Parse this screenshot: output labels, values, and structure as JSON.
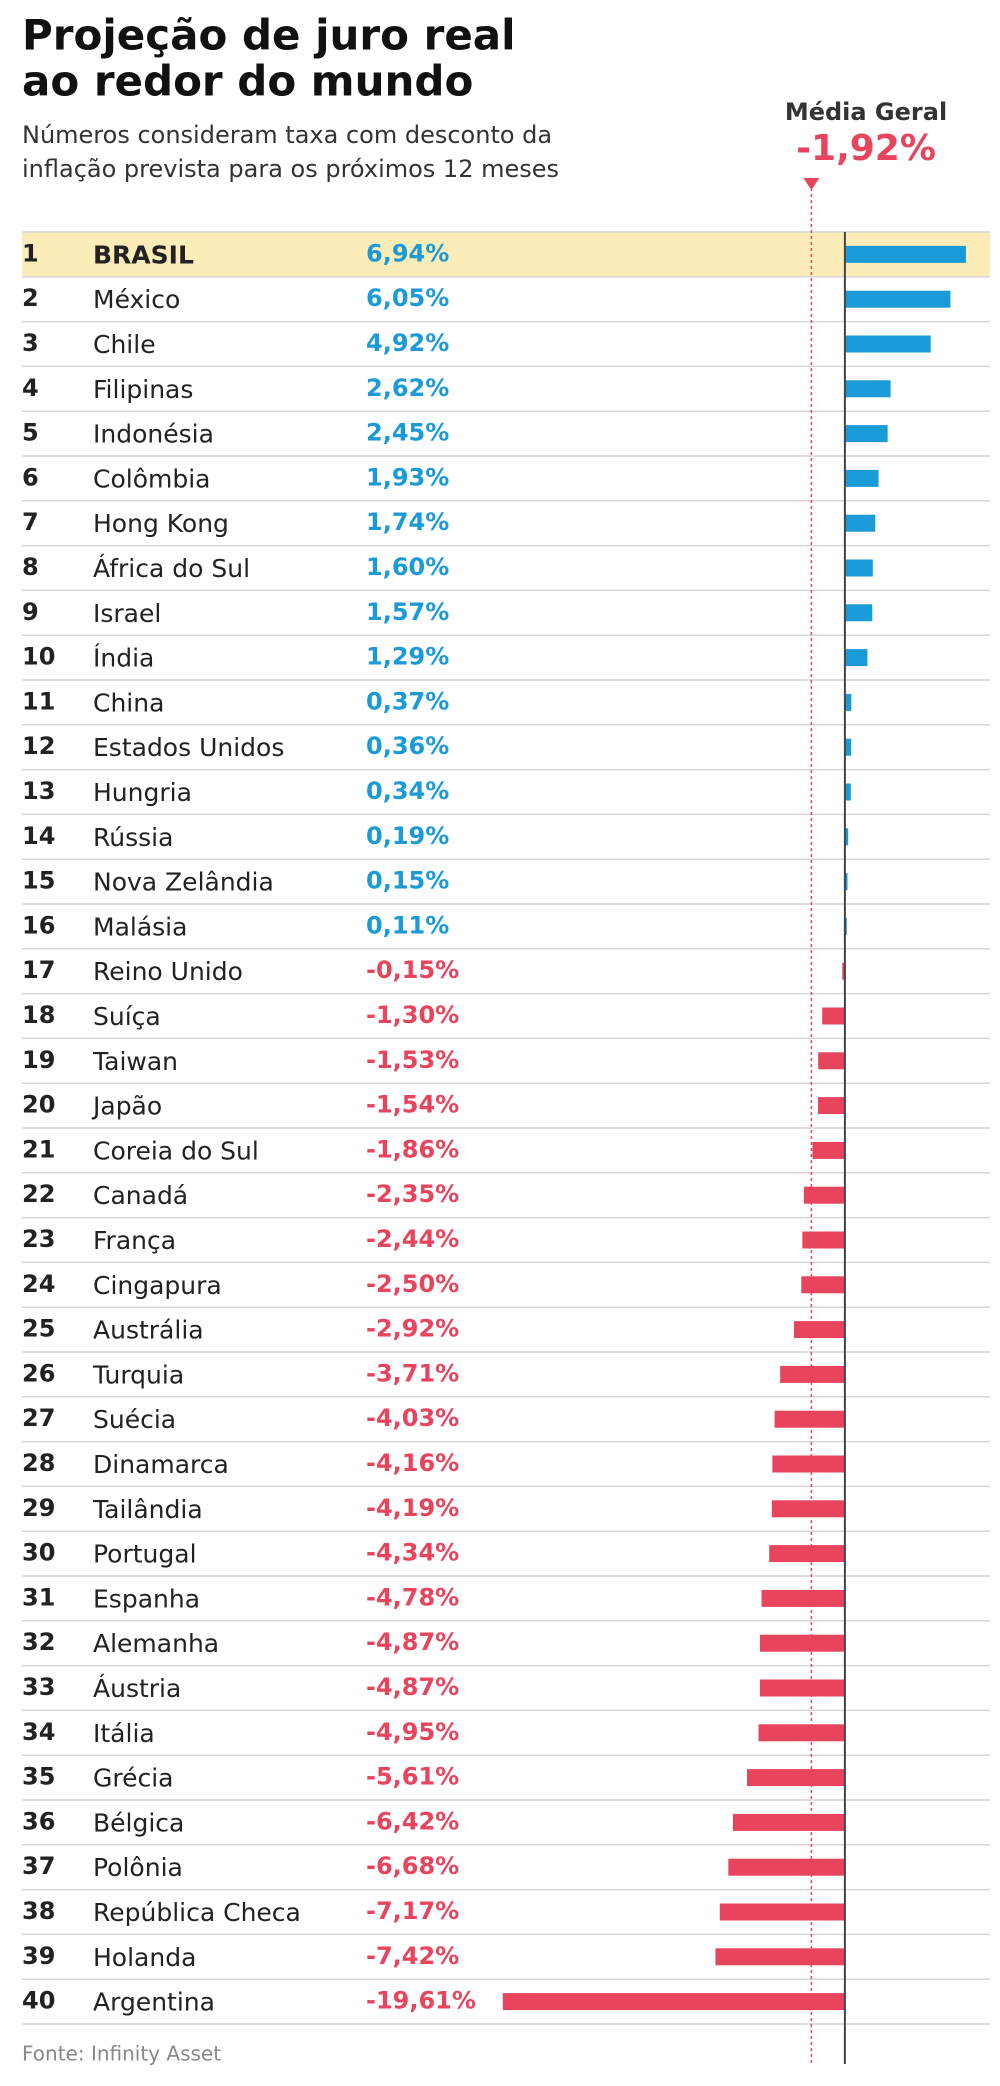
{
  "chart_data": {
    "type": "bar",
    "orientation": "horizontal",
    "title": "Projeção de juro real",
    "title_line2": "ao redor do mundo",
    "subtitle": "Números consideram taxa com desconto da",
    "subtitle_line2": "inflação prevista para os próximos 12 meses",
    "source": "Fonte: Infinity Asset",
    "ranks": [
      1,
      2,
      3,
      4,
      5,
      6,
      7,
      8,
      9,
      10,
      11,
      12,
      13,
      14,
      15,
      16,
      17,
      18,
      19,
      20,
      21,
      22,
      23,
      24,
      25,
      26,
      27,
      28,
      29,
      30,
      31,
      32,
      33,
      34,
      35,
      36,
      37,
      38,
      39,
      40
    ],
    "categories": [
      "BRASIL",
      "México",
      "Chile",
      "Filipinas",
      "Indonésia",
      "Colômbia",
      "Hong Kong",
      "África do Sul",
      "Israel",
      "Índia",
      "China",
      "Estados Unidos",
      "Hungria",
      "Rússia",
      "Nova Zelândia",
      "Malásia",
      "Reino Unido",
      "Suíça",
      "Taiwan",
      "Japão",
      "Coreia do Sul",
      "Canadá",
      "França",
      "Cingapura",
      "Austrália",
      "Turquia",
      "Suécia",
      "Dinamarca",
      "Tailândia",
      "Portugal",
      "Espanha",
      "Alemanha",
      "Áustria",
      "Itália",
      "Grécia",
      "Bélgica",
      "Polônia",
      "República Checa",
      "Holanda",
      "Argentina"
    ],
    "values": [
      6.94,
      6.05,
      4.92,
      2.62,
      2.45,
      1.93,
      1.74,
      1.6,
      1.57,
      1.29,
      0.37,
      0.36,
      0.34,
      0.19,
      0.15,
      0.11,
      -0.15,
      -1.3,
      -1.53,
      -1.54,
      -1.86,
      -2.35,
      -2.44,
      -2.5,
      -2.92,
      -3.71,
      -4.03,
      -4.16,
      -4.19,
      -4.34,
      -4.78,
      -4.87,
      -4.87,
      -4.95,
      -5.61,
      -6.42,
      -6.68,
      -7.17,
      -7.42,
      -19.61
    ],
    "value_labels": [
      "6,94%",
      "6,05%",
      "4,92%",
      "2,62%",
      "2,45%",
      "1,93%",
      "1,74%",
      "1,60%",
      "1,57%",
      "1,29%",
      "0,37%",
      "0,36%",
      "0,34%",
      "0,19%",
      "0,15%",
      "0,11%",
      "-0,15%",
      "-1,30%",
      "-1,53%",
      "-1,54%",
      "-1,86%",
      "-2,35%",
      "-2,44%",
      "-2,50%",
      "-2,92%",
      "-3,71%",
      "-4,03%",
      "-4,16%",
      "-4,19%",
      "-4,34%",
      "-4,78%",
      "-4,87%",
      "-4,87%",
      "-4,95%",
      "-5,61%",
      "-6,42%",
      "-6,68%",
      "-7,17%",
      "-7,42%",
      "-19,61%"
    ],
    "xlim": [
      -20,
      7
    ],
    "colors": {
      "positive": "#1a9ad6",
      "negative": "#e8445e"
    },
    "highlight": {
      "index": 0,
      "color": "#fcecb8"
    },
    "reference": {
      "label": "Média Geral",
      "value": -1.92,
      "value_label": "-1,92%"
    }
  }
}
